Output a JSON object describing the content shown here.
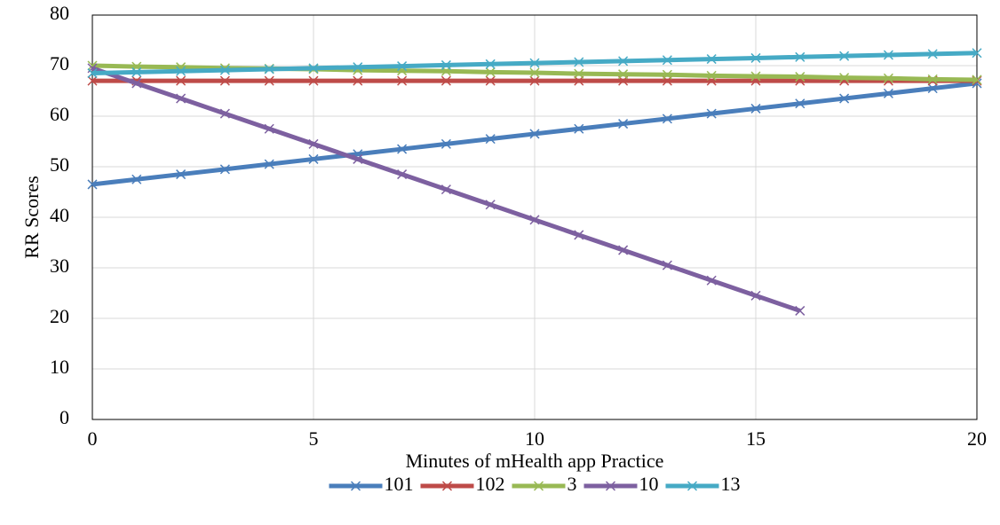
{
  "chart_data": {
    "type": "line",
    "x_label": "Minutes of mHealth app Practice",
    "y_label": "RR Scores",
    "x": [
      0,
      1,
      2,
      3,
      4,
      5,
      6,
      7,
      8,
      9,
      10,
      11,
      12,
      13,
      14,
      15,
      16,
      17,
      18,
      19,
      20
    ],
    "xlim": [
      0,
      20
    ],
    "xticks": [
      0,
      5,
      10,
      15,
      20
    ],
    "ylim": [
      0,
      80
    ],
    "yticks": [
      0,
      10,
      20,
      30,
      40,
      50,
      60,
      70,
      80
    ],
    "grid": true,
    "legend": "bottom",
    "series": [
      {
        "name": "101",
        "color": "#4a7ebb",
        "values": [
          46.5,
          47.5,
          48.5,
          49.5,
          50.5,
          51.5,
          52.5,
          53.5,
          54.5,
          55.5,
          56.5,
          57.5,
          58.5,
          59.5,
          60.5,
          61.5,
          62.5,
          63.5,
          64.5,
          65.5,
          66.5
        ]
      },
      {
        "name": "102",
        "color": "#be4b48",
        "values": [
          67,
          67,
          67,
          67,
          67,
          67,
          67,
          67,
          67,
          67,
          67,
          67,
          67,
          67,
          67,
          67,
          67,
          67,
          67,
          67,
          67
        ]
      },
      {
        "name": "3",
        "color": "#98b954",
        "values": [
          70.0,
          69.8,
          69.7,
          69.5,
          69.4,
          69.3,
          69.1,
          69.0,
          68.9,
          68.7,
          68.6,
          68.4,
          68.3,
          68.2,
          68.0,
          67.9,
          67.8,
          67.6,
          67.5,
          67.3,
          67.2
        ]
      },
      {
        "name": "10",
        "color": "#7d60a0",
        "values": [
          69.5,
          66.5,
          63.5,
          60.5,
          57.5,
          54.5,
          51.5,
          48.5,
          45.5,
          42.5,
          39.5,
          36.5,
          33.5,
          30.5,
          27.5,
          24.5,
          21.5,
          null,
          null,
          null,
          null
        ]
      },
      {
        "name": "13",
        "color": "#46aac5",
        "values": [
          68.5,
          68.7,
          68.9,
          69.1,
          69.3,
          69.5,
          69.7,
          69.9,
          70.1,
          70.3,
          70.5,
          70.7,
          70.9,
          71.1,
          71.3,
          71.5,
          71.7,
          71.9,
          72.1,
          72.3,
          72.5
        ]
      }
    ]
  }
}
